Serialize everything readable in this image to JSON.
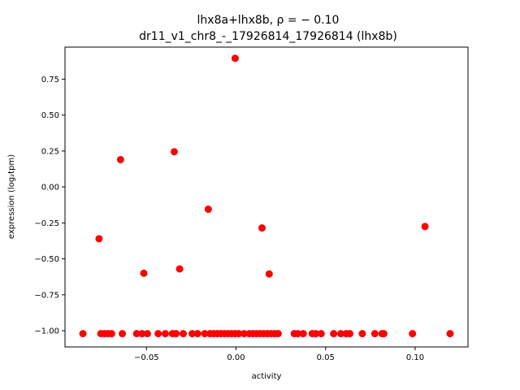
{
  "chart_data": {
    "type": "scatter",
    "title_line1": "lhx8a+lhx8b, ρ = − 0.10",
    "title_line2": "dr11_v1_chr8_-_17926814_17926814 (lhx8b)",
    "xlabel": "activity",
    "ylabel": "expression (log₂tpm)",
    "xlim": [
      -0.0955,
      0.1295
    ],
    "ylim": [
      -1.1125,
      0.9725
    ],
    "xticks": [
      {
        "value": -0.05,
        "label": "−0.05"
      },
      {
        "value": 0.0,
        "label": "0.00"
      },
      {
        "value": 0.05,
        "label": "0.05"
      },
      {
        "value": 0.1,
        "label": "0.10"
      }
    ],
    "yticks": [
      {
        "value": 0.75,
        "label": "0.75"
      },
      {
        "value": 0.5,
        "label": "0.50"
      },
      {
        "value": 0.25,
        "label": "0.25"
      },
      {
        "value": 0.0,
        "label": "0.00"
      },
      {
        "value": -0.25,
        "label": "−0.25"
      },
      {
        "value": -0.5,
        "label": "−0.50"
      },
      {
        "value": -0.75,
        "label": "−0.75"
      },
      {
        "value": -1.0,
        "label": "−1.00"
      }
    ],
    "marker_color": "#ff0000",
    "points": [
      {
        "x": -0.0855,
        "y": -1.02
      },
      {
        "x": -0.0755,
        "y": -1.02
      },
      {
        "x": -0.0735,
        "y": -1.02
      },
      {
        "x": -0.0715,
        "y": -1.02
      },
      {
        "x": -0.0695,
        "y": -1.02
      },
      {
        "x": -0.0635,
        "y": -1.02
      },
      {
        "x": -0.0555,
        "y": -1.02
      },
      {
        "x": -0.0525,
        "y": -1.02
      },
      {
        "x": -0.0495,
        "y": -1.02
      },
      {
        "x": -0.0435,
        "y": -1.02
      },
      {
        "x": -0.0395,
        "y": -1.02
      },
      {
        "x": -0.0355,
        "y": -1.02
      },
      {
        "x": -0.0335,
        "y": -1.02
      },
      {
        "x": -0.0295,
        "y": -1.02
      },
      {
        "x": -0.0245,
        "y": -1.02
      },
      {
        "x": -0.0215,
        "y": -1.02
      },
      {
        "x": -0.0175,
        "y": -1.02
      },
      {
        "x": -0.0145,
        "y": -1.02
      },
      {
        "x": -0.0125,
        "y": -1.02
      },
      {
        "x": -0.0105,
        "y": -1.02
      },
      {
        "x": -0.0085,
        "y": -1.02
      },
      {
        "x": -0.0065,
        "y": -1.02
      },
      {
        "x": -0.0045,
        "y": -1.02
      },
      {
        "x": -0.0025,
        "y": -1.02
      },
      {
        "x": -0.0005,
        "y": -1.02
      },
      {
        "x": 0.0015,
        "y": -1.02
      },
      {
        "x": 0.0045,
        "y": -1.02
      },
      {
        "x": 0.0075,
        "y": -1.02
      },
      {
        "x": 0.0095,
        "y": -1.02
      },
      {
        "x": 0.0115,
        "y": -1.02
      },
      {
        "x": 0.0135,
        "y": -1.02
      },
      {
        "x": 0.0155,
        "y": -1.02
      },
      {
        "x": 0.0175,
        "y": -1.02
      },
      {
        "x": 0.0195,
        "y": -1.02
      },
      {
        "x": 0.0215,
        "y": -1.02
      },
      {
        "x": 0.0235,
        "y": -1.02
      },
      {
        "x": 0.0325,
        "y": -1.02
      },
      {
        "x": 0.0345,
        "y": -1.02
      },
      {
        "x": 0.0375,
        "y": -1.02
      },
      {
        "x": 0.0425,
        "y": -1.02
      },
      {
        "x": 0.0445,
        "y": -1.02
      },
      {
        "x": 0.0475,
        "y": -1.02
      },
      {
        "x": 0.0545,
        "y": -1.02
      },
      {
        "x": 0.0585,
        "y": -1.02
      },
      {
        "x": 0.0615,
        "y": -1.02
      },
      {
        "x": 0.0635,
        "y": -1.02
      },
      {
        "x": 0.0705,
        "y": -1.02
      },
      {
        "x": 0.0775,
        "y": -1.02
      },
      {
        "x": 0.0815,
        "y": -1.02
      },
      {
        "x": 0.0825,
        "y": -1.02
      },
      {
        "x": 0.0985,
        "y": -1.02
      },
      {
        "x": 0.1195,
        "y": -1.02
      },
      {
        "x": -0.0765,
        "y": -0.36
      },
      {
        "x": -0.0645,
        "y": 0.19
      },
      {
        "x": -0.0345,
        "y": 0.245
      },
      {
        "x": -0.0515,
        "y": -0.6
      },
      {
        "x": -0.0315,
        "y": -0.57
      },
      {
        "x": -0.0155,
        "y": -0.155
      },
      {
        "x": -0.0005,
        "y": 0.895
      },
      {
        "x": 0.0145,
        "y": -0.285
      },
      {
        "x": 0.0185,
        "y": -0.605
      },
      {
        "x": 0.1055,
        "y": -0.275
      }
    ]
  }
}
